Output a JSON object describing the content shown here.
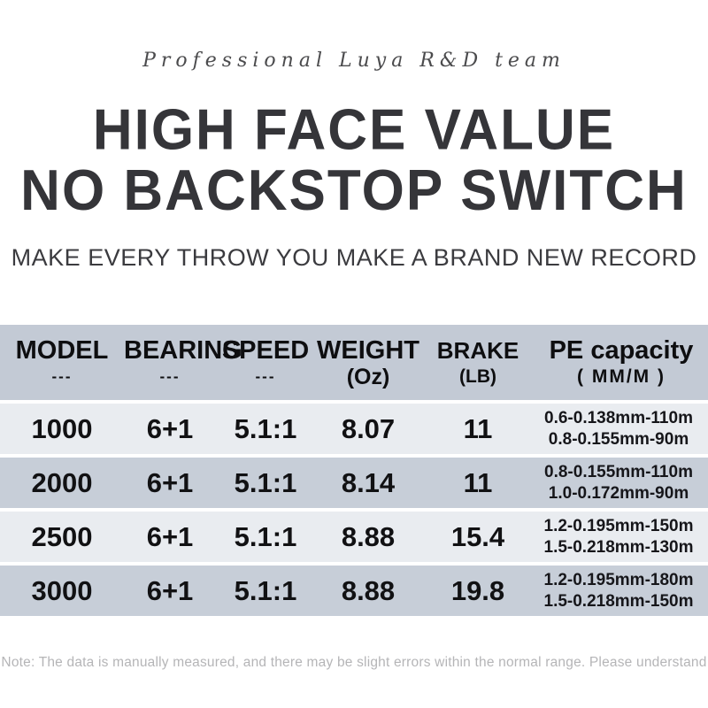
{
  "header": {
    "tagline": "Professional Luya R&D team",
    "title_line1": "HIGH FACE VALUE",
    "title_line2": "NO BACKSTOP SWITCH",
    "subtitle": "MAKE EVERY THROW YOU MAKE A BRAND NEW RECORD"
  },
  "colors": {
    "header_row_bg": "#c3cad5",
    "row_light_bg": "#e9ecf0",
    "row_dark_bg": "#c7ced8",
    "title_text": "#353539",
    "body_text": "#111113",
    "footnote_text": "#b5b5b7"
  },
  "table": {
    "columns": [
      {
        "label": "MODEL",
        "sub": "---"
      },
      {
        "label": "BEARING",
        "sub": "---"
      },
      {
        "label": "SPEED",
        "sub": "---"
      },
      {
        "label": "WEIGHT",
        "sub": "(Oz)"
      },
      {
        "label": "BRAKE",
        "sub": "(LB)"
      },
      {
        "label": "PE capacity",
        "sub": "( MM/M )"
      }
    ],
    "rows": [
      {
        "model": "1000",
        "bearing": "6+1",
        "speed": "5.1:1",
        "weight": "8.07",
        "brake": "11",
        "pe_line1": "0.6-0.138mm-110m",
        "pe_line2": "0.8-0.155mm-90m"
      },
      {
        "model": "2000",
        "bearing": "6+1",
        "speed": "5.1:1",
        "weight": "8.14",
        "brake": "11",
        "pe_line1": "0.8-0.155mm-110m",
        "pe_line2": "1.0-0.172mm-90m"
      },
      {
        "model": "2500",
        "bearing": "6+1",
        "speed": "5.1:1",
        "weight": "8.88",
        "brake": "15.4",
        "pe_line1": "1.2-0.195mm-150m",
        "pe_line2": "1.5-0.218mm-130m"
      },
      {
        "model": "3000",
        "bearing": "6+1",
        "speed": "5.1:1",
        "weight": "8.88",
        "brake": "19.8",
        "pe_line1": "1.2-0.195mm-180m",
        "pe_line2": "1.5-0.218mm-150m"
      }
    ]
  },
  "footer": {
    "note": "Note: The data is manually measured, and there may be slight errors within the normal range. Please understand"
  }
}
